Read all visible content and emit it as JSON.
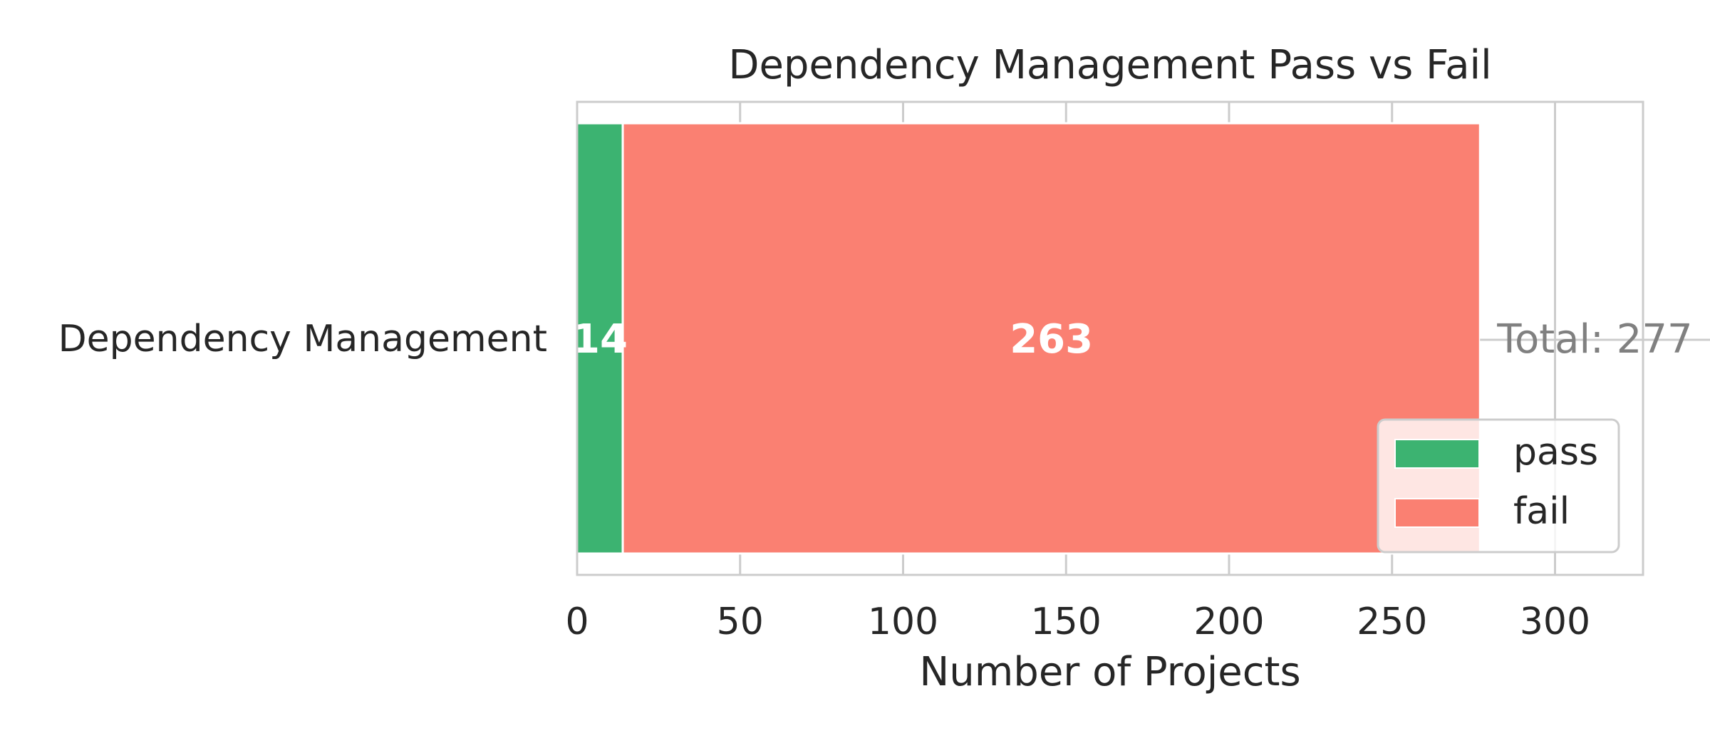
{
  "chart_data": {
    "type": "bar",
    "orientation": "horizontal",
    "stacked": true,
    "title": "Dependency Management Pass vs Fail",
    "xlabel": "Number of Projects",
    "ylabel": "",
    "categories": [
      "Dependency Management"
    ],
    "series": [
      {
        "name": "pass",
        "values": [
          14
        ],
        "color": "#3cb371"
      },
      {
        "name": "fail",
        "values": [
          263
        ],
        "color": "#fa8072"
      }
    ],
    "data_labels": [
      "14",
      "263"
    ],
    "total_label": "Total: 277",
    "total_color": "#808080",
    "xlim": [
      0,
      327
    ],
    "xticks": [
      0,
      50,
      100,
      150,
      200,
      250,
      300
    ],
    "grid": true,
    "legend": {
      "position": "lower-right",
      "entries": [
        "pass",
        "fail"
      ]
    }
  }
}
